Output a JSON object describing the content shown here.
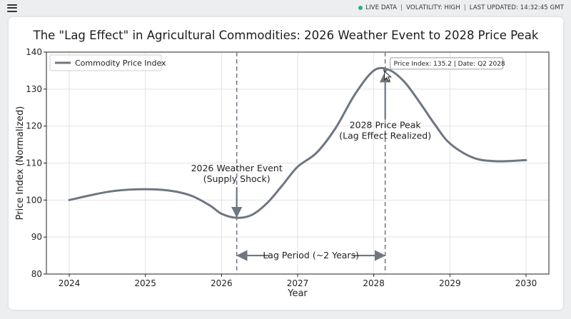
{
  "topbar": {
    "live_label": "LIVE DATA",
    "volatility": "VOLATILITY: HIGH",
    "last_updated": "LAST UPDATED: 14:32:45 GMT",
    "live_color": "#22b37a",
    "menu_icon": "hamburger-menu-icon"
  },
  "chart_data": {
    "type": "line",
    "title": "The \"Lag Effect\" in Agricultural Commodities: 2026 Weather Event to 2028 Price Peak",
    "xlabel": "Year",
    "ylabel": "Price Index (Normalized)",
    "xlim": [
      2023.7,
      2030.3
    ],
    "ylim": [
      80,
      140
    ],
    "xticks": [
      2024,
      2025,
      2026,
      2027,
      2028,
      2029,
      2030
    ],
    "yticks": [
      80,
      90,
      100,
      110,
      120,
      130,
      140
    ],
    "grid": true,
    "legend_position": "top-left",
    "line_color": "#6e7681",
    "series": [
      {
        "name": "Commodity Price Index",
        "x": [
          2024.0,
          2024.5,
          2024.9,
          2025.3,
          2025.6,
          2025.85,
          2026.0,
          2026.2,
          2026.4,
          2026.6,
          2026.8,
          2027.0,
          2027.25,
          2027.5,
          2027.75,
          2028.0,
          2028.2,
          2028.4,
          2028.6,
          2028.8,
          2029.0,
          2029.3,
          2029.6,
          2030.0
        ],
        "y": [
          100.0,
          102.2,
          102.9,
          102.6,
          101.2,
          98.5,
          96.3,
          95.2,
          96.0,
          99.2,
          104.0,
          109.0,
          112.8,
          119.5,
          128.5,
          135.0,
          135.2,
          132.0,
          126.5,
          120.5,
          115.3,
          111.5,
          110.5,
          110.8
        ]
      }
    ],
    "vlines": [
      2026.2,
      2028.15
    ],
    "annotations": [
      {
        "id": "weather",
        "lines": [
          "2026 Weather Event",
          "(Supply Shock)"
        ],
        "arrow_to": [
          2026.2,
          95.5
        ],
        "arrow_from": [
          2026.2,
          103.5
        ]
      },
      {
        "id": "peak",
        "lines": [
          "2028 Price Peak",
          "(Lag Effect Realized)"
        ],
        "arrow_to": [
          2028.15,
          134.5
        ],
        "arrow_from": [
          2028.15,
          122
        ]
      }
    ],
    "span": {
      "label": "Lag Period (~2 Years)",
      "from": 2026.2,
      "to": 2028.15,
      "y": 85
    },
    "tooltip": {
      "text": "Price Index: 135.2 | Date: Q2 2028",
      "x": 2028.15,
      "y": 135.2
    }
  }
}
